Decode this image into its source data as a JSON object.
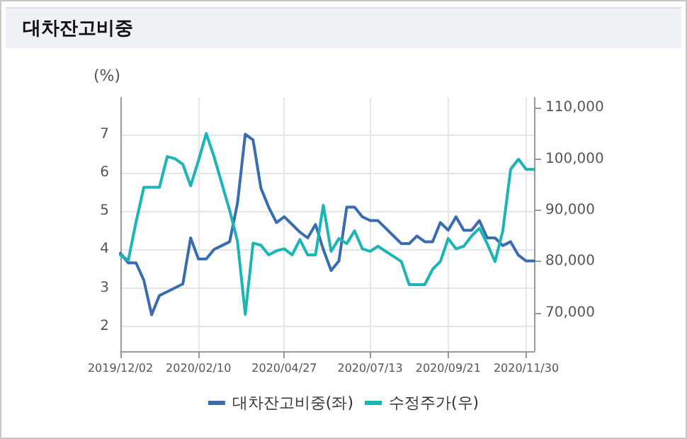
{
  "chart_data": {
    "type": "line",
    "title": "대차잔고비중",
    "ylabel": "(%)",
    "x": [
      "2019-12-02",
      "2019-12-09",
      "2019-12-16",
      "2019-12-23",
      "2019-12-30",
      "2020-01-06",
      "2020-01-13",
      "2020-01-20",
      "2020-01-27",
      "2020-02-03",
      "2020-02-10",
      "2020-02-17",
      "2020-02-24",
      "2020-03-02",
      "2020-03-09",
      "2020-03-16",
      "2020-03-23",
      "2020-03-30",
      "2020-04-06",
      "2020-04-13",
      "2020-04-20",
      "2020-04-27",
      "2020-05-04",
      "2020-05-11",
      "2020-05-18",
      "2020-05-25",
      "2020-06-01",
      "2020-06-08",
      "2020-06-15",
      "2020-06-22",
      "2020-06-29",
      "2020-07-06",
      "2020-07-13",
      "2020-07-20",
      "2020-07-27",
      "2020-08-03",
      "2020-08-10",
      "2020-08-17",
      "2020-08-24",
      "2020-08-31",
      "2020-09-07",
      "2020-09-14",
      "2020-09-21",
      "2020-09-28",
      "2020-10-05",
      "2020-10-12",
      "2020-10-19",
      "2020-10-26",
      "2020-11-02",
      "2020-11-09",
      "2020-11-16",
      "2020-11-23",
      "2020-11-30",
      "2020-12-07"
    ],
    "series": [
      {
        "name": "대차잔고비중(좌)",
        "color": "#3a6db0",
        "values": [
          3.9,
          3.65,
          3.65,
          3.2,
          2.3,
          2.8,
          2.9,
          3.0,
          3.1,
          4.3,
          3.75,
          3.75,
          4.0,
          4.1,
          4.2,
          5.2,
          7.0,
          6.85,
          5.6,
          5.1,
          4.7,
          4.85,
          4.65,
          4.45,
          4.3,
          4.65,
          4.0,
          3.45,
          3.7,
          5.1,
          5.1,
          4.85,
          4.75,
          4.75,
          4.55,
          4.35,
          4.15,
          4.15,
          4.35,
          4.2,
          4.2,
          4.7,
          4.5,
          4.85,
          4.5,
          4.5,
          4.75,
          4.3,
          4.3,
          4.1,
          4.2,
          3.85,
          3.7,
          3.7
        ]
      },
      {
        "name": "수정주가(우)",
        "color": "#1bb5b5",
        "axis": "y2",
        "values": [
          81300,
          80200,
          87700,
          94500,
          94500,
          94500,
          100500,
          100100,
          99000,
          94800,
          99700,
          105000,
          100500,
          95200,
          90000,
          84000,
          69700,
          83600,
          83200,
          81300,
          82100,
          82500,
          81300,
          84300,
          81300,
          81300,
          91000,
          82000,
          84500,
          83500,
          86000,
          82500,
          82000,
          83000,
          82000,
          81000,
          80000,
          75500,
          75500,
          75500,
          78500,
          80000,
          84500,
          82500,
          83000,
          85000,
          86500,
          83500,
          80000,
          86000,
          98000,
          100000,
          98000,
          98000
        ]
      }
    ],
    "xlim": [
      "2019-12-02",
      "2020-12-07"
    ],
    "xticks": [
      {
        "value": "2019-12-02",
        "label": "2019/12/02"
      },
      {
        "value": "2020-02-10",
        "label": "2020/02/10"
      },
      {
        "value": "2020-04-27",
        "label": "2020/04/27"
      },
      {
        "value": "2020-07-13",
        "label": "2020/07/13"
      },
      {
        "value": "2020-09-21",
        "label": "2020/09/21"
      },
      {
        "value": "2020-11-30",
        "label": "2020/11/30"
      }
    ],
    "ylim": [
      1.35,
      7.95
    ],
    "yticks": [
      2,
      3,
      4,
      5,
      6,
      7
    ],
    "y2lim": [
      62500,
      112000
    ],
    "y2ticks": [
      {
        "value": 70000,
        "label": "70,000"
      },
      {
        "value": 80000,
        "label": "80,000"
      },
      {
        "value": 90000,
        "label": "90,000"
      },
      {
        "value": 100000,
        "label": "100,000"
      },
      {
        "value": 110000,
        "label": "110,000"
      }
    ],
    "grid": true,
    "legend": "bottom",
    "marker": "none",
    "line_style": "solid"
  }
}
